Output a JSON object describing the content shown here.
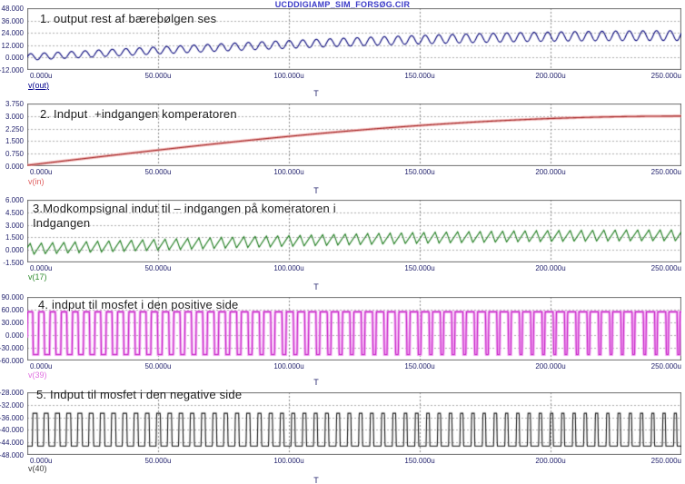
{
  "window_title": "UCDDIGIAMP_SIM_FORSØG.CIR",
  "xaxis": {
    "label": "T",
    "ticks": [
      "0.000u",
      "50.000u",
      "100.000u",
      "150.000u",
      "200.000u",
      "250.000u"
    ],
    "range_us": [
      0,
      250
    ]
  },
  "chart_data": [
    {
      "type": "line",
      "annotation": "1. output rest af bærebølgen ses",
      "signal": "v(out)",
      "color": "#000078",
      "label_color": "#00008b",
      "yticks": [
        "48.000",
        "36.000",
        "24.000",
        "12.000",
        "0.000",
        "-12.000"
      ],
      "ylim": [
        -12,
        48
      ],
      "x_range_us": [
        0,
        250
      ],
      "xlabel": "T",
      "grid": "dashed",
      "waveform": {
        "kind": "am_output",
        "mean_peak": 21.5,
        "ripple_min": 3.2,
        "ripple_max": 5.0,
        "carrier_period_us": 5.2,
        "signal_period_us": 1000
      }
    },
    {
      "type": "line",
      "annotation": "2. Indput  +indgangen komperatoren",
      "signal": "v(in)",
      "color": "#a02525",
      "halo_color": "#f2b6b6",
      "label_color": "#e06060",
      "yticks": [
        "3.750",
        "3.000",
        "2.250",
        "1.500",
        "0.750",
        "0.000"
      ],
      "ylim": [
        0,
        3.75
      ],
      "x_range_us": [
        0,
        250
      ],
      "xlabel": "T",
      "grid": "dashed",
      "waveform": {
        "kind": "quarter_sine",
        "peak": 3.03,
        "signal_period_us": 1000
      }
    },
    {
      "type": "line",
      "annotation": "3.Modkompsignal indut til – indgangen på komeratoren i Indgangen",
      "signal": "v(17)",
      "color": "#1a7a1a",
      "label_color": "#2e8b2e",
      "yticks": [
        "6.000",
        "4.500",
        "3.000",
        "1.500",
        "0.000",
        "-1.500"
      ],
      "ylim": [
        -1.5,
        6
      ],
      "x_range_us": [
        0,
        250
      ],
      "xlabel": "T",
      "grid": "dashed",
      "waveform": {
        "kind": "modulated_sawtooth",
        "mean_offset": 0.05,
        "mean_peak": 1.68,
        "amp": 0.68,
        "rise_fraction": 0.66,
        "phase": 0.4,
        "carrier_period_us": 4.3,
        "signal_period_us": 1000
      }
    },
    {
      "type": "line",
      "annotation": "4. indput til mosfet i den positive side",
      "signal": "v(39)",
      "color": "#c322c3",
      "halo_color": "#f3a8f3",
      "label_color": "#e070e0",
      "yticks": [
        "90.000",
        "60.000",
        "30.000",
        "0.000",
        "-30.000",
        "-60.000"
      ],
      "ylim": [
        -60,
        90
      ],
      "x_range_us": [
        0,
        250
      ],
      "xlabel": "T",
      "grid": "dashed",
      "waveform": {
        "kind": "pwm",
        "high": 56,
        "low": -48,
        "duty_start": 0.5,
        "duty_end": 0.78,
        "phase": 0.02,
        "edge": 0.05,
        "carrier_period_us": 4.3,
        "signal_period_us": 1000
      }
    },
    {
      "type": "line",
      "annotation": "5. Indput til mosfet i den negative side",
      "signal": "v(40)",
      "color": "#161616",
      "label_color": "#3c3c3c",
      "yticks": [
        "-28.000",
        "-32.000",
        "-36.000",
        "-40.000",
        "-44.000",
        "-48.000"
      ],
      "ylim": [
        -48,
        -28
      ],
      "x_range_us": [
        0,
        250
      ],
      "xlabel": "T",
      "grid": "dashed",
      "waveform": {
        "kind": "pwm",
        "high": -34.6,
        "low": -45.4,
        "duty_start": 0.43,
        "duty_end": 0.26,
        "phase": 0.55,
        "edge": 0.05,
        "carrier_period_us": 4.3,
        "signal_period_us": 1000
      }
    }
  ]
}
